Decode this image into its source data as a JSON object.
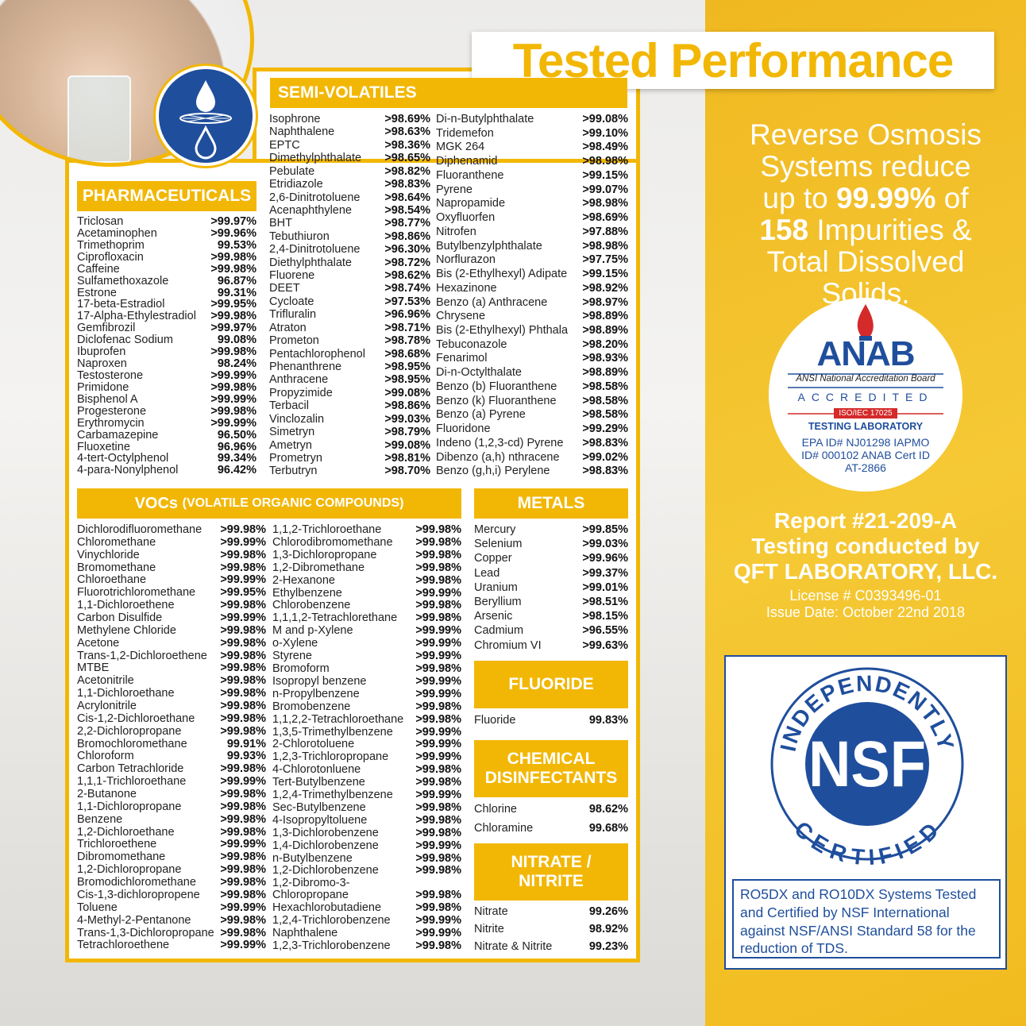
{
  "title": "Tested Performance",
  "colors": {
    "accent": "#f2b705",
    "blue": "#1f4e9c",
    "white": "#ffffff"
  },
  "icons": {
    "badge": "water-drop-filter-icon"
  },
  "pharmaceuticals": {
    "heading": "PHARMACEUTICALS",
    "items": [
      [
        "Triclosan",
        ">99.97%"
      ],
      [
        "Acetaminophen",
        ">99.96%"
      ],
      [
        "Trimethoprim",
        "99.53%"
      ],
      [
        "Ciprofloxacin",
        ">99.98%"
      ],
      [
        "Caffeine",
        ">99.98%"
      ],
      [
        "Sulfamethoxazole",
        "96.87%"
      ],
      [
        "Estrone",
        "99.31%"
      ],
      [
        "17-beta-Estradiol",
        ">99.95%"
      ],
      [
        "17-Alpha-Ethylestradiol",
        ">99.98%"
      ],
      [
        "Gemfibrozil",
        ">99.97%"
      ],
      [
        "Diclofenac Sodium",
        "99.08%"
      ],
      [
        "Ibuprofen",
        ">99.98%"
      ],
      [
        "Naproxen",
        "98.24%"
      ],
      [
        "Testosterone",
        ">99.99%"
      ],
      [
        "Primidone",
        ">99.98%"
      ],
      [
        "Bisphenol A",
        ">99.99%"
      ],
      [
        "Progesterone",
        ">99.98%"
      ],
      [
        "Erythromycin",
        ">99.99%"
      ],
      [
        "Carbamazepine",
        "96.50%"
      ],
      [
        "Fluoxetine",
        "96.96%"
      ],
      [
        "4-tert-Octylphenol",
        "99.34%"
      ],
      [
        "4-para-Nonylphenol",
        "96.42%"
      ]
    ]
  },
  "semi_volatiles": {
    "heading": "SEMI-VOLATILES",
    "col1": [
      [
        "Isophrone",
        ">98.69%"
      ],
      [
        "Naphthalene",
        ">98.63%"
      ],
      [
        "EPTC",
        ">98.36%"
      ],
      [
        "Dimethylphthalate",
        ">98.65%"
      ],
      [
        "Pebulate",
        ">98.82%"
      ],
      [
        "Etridiazole",
        ">98.83%"
      ],
      [
        "2,6-Dinitrotoluene",
        ">98.64%"
      ],
      [
        "Acenaphthylene",
        ">98.54%"
      ],
      [
        "BHT",
        ">98.77%"
      ],
      [
        "Tebuthiuron",
        ">98.86%"
      ],
      [
        "2,4-Dinitrotoluene",
        ">96.30%"
      ],
      [
        "Diethylphthalate",
        ">98.72%"
      ],
      [
        "Fluorene",
        ">98.62%"
      ],
      [
        "DEET",
        ">98.74%"
      ],
      [
        "Cycloate",
        ">97.53%"
      ],
      [
        "Trifluralin",
        ">96.96%"
      ],
      [
        "Atraton",
        ">98.71%"
      ],
      [
        "Prometon",
        ">98.78%"
      ],
      [
        "Pentachlorophenol",
        ">98.68%"
      ],
      [
        "Phenanthrene",
        ">98.95%"
      ],
      [
        "Anthracene",
        ">98.95%"
      ],
      [
        "Propyzimide",
        ">99.08%"
      ],
      [
        "Terbacil",
        ">98.86%"
      ],
      [
        "Vinclozalin",
        ">99.03%"
      ],
      [
        "Simetryn",
        ">98.79%"
      ],
      [
        "Ametryn",
        ">99.08%"
      ],
      [
        "Prometryn",
        ">98.81%"
      ],
      [
        "Terbutryn",
        ">98.70%"
      ]
    ],
    "col2": [
      [
        "Di-n-Butylphthalate",
        ">99.08%"
      ],
      [
        "Tridemefon",
        ">99.10%"
      ],
      [
        "MGK 264",
        ">98.49%"
      ],
      [
        "Diphenamid",
        ">98.98%"
      ],
      [
        "Fluoranthene",
        ">99.15%"
      ],
      [
        "Pyrene",
        ">99.07%"
      ],
      [
        "Napropamide",
        ">98.98%"
      ],
      [
        "Oxyfluorfen",
        ">98.69%"
      ],
      [
        "Nitrofen",
        ">97.88%"
      ],
      [
        "Butylbenzylphthalate",
        ">98.98%"
      ],
      [
        "Norflurazon",
        ">97.75%"
      ],
      [
        "Bis (2-Ethylhexyl) Adipate",
        ">99.15%"
      ],
      [
        "Hexazinone",
        ">98.92%"
      ],
      [
        "Benzo (a) Anthracene",
        ">98.97%"
      ],
      [
        "Chrysene",
        ">98.89%"
      ],
      [
        "Bis (2-Ethylhexyl) Phthala",
        ">98.89%"
      ],
      [
        "Tebuconazole",
        ">98.20%"
      ],
      [
        "Fenarimol",
        ">98.93%"
      ],
      [
        "Di-n-Octylthalate",
        ">98.89%"
      ],
      [
        "Benzo (b) Fluoranthene",
        ">98.58%"
      ],
      [
        "Benzo (k) Fluoranthene",
        ">98.58%"
      ],
      [
        "Benzo (a) Pyrene",
        ">98.58%"
      ],
      [
        "Fluoridone",
        ">99.29%"
      ],
      [
        "Indeno (1,2,3-cd) Pyrene",
        ">98.83%"
      ],
      [
        "Dibenzo (a,h) nthracene",
        ">99.02%"
      ],
      [
        "Benzo (g,h,i) Perylene",
        ">98.83%"
      ]
    ]
  },
  "vocs": {
    "heading": "VOCs",
    "heading_sub": "(VOLATILE ORGANIC COMPOUNDS)",
    "col1": [
      [
        "Dichlorodifluoromethane",
        ">99.98%"
      ],
      [
        "Chloromethane",
        ">99.99%"
      ],
      [
        "Vinychloride",
        ">99.98%"
      ],
      [
        "Bromomethane",
        ">99.98%"
      ],
      [
        "Chloroethane",
        ">99.99%"
      ],
      [
        "Fluorotrichloromethane",
        ">99.95%"
      ],
      [
        "1,1-Dichloroethene",
        ">99.98%"
      ],
      [
        "Carbon Disulfide",
        ">99.99%"
      ],
      [
        "Methylene Chloride",
        ">99.98%"
      ],
      [
        "Acetone",
        ">99.98%"
      ],
      [
        "Trans-1,2-Dichloroethene",
        ">99.98%"
      ],
      [
        "MTBE",
        ">99.98%"
      ],
      [
        "Acetonitrile",
        ">99.98%"
      ],
      [
        "1,1-Dichloroethane",
        ">99.98%"
      ],
      [
        "Acrylonitrile",
        ">99.98%"
      ],
      [
        "Cis-1,2-Dichloroethane",
        ">99.98%"
      ],
      [
        "2,2-Dichloropropane",
        ">99.98%"
      ],
      [
        "Bromochloromethane",
        "99.91%"
      ],
      [
        "Chloroform",
        "99.93%"
      ],
      [
        "Carbon Tetrachloride",
        ">99.98%"
      ],
      [
        "1,1,1-Trichloroethane",
        ">99.99%"
      ],
      [
        "2-Butanone",
        ">99.98%"
      ],
      [
        "1,1-Dichloropropane",
        ">99.98%"
      ],
      [
        "Benzene",
        ">99.98%"
      ],
      [
        "1,2-Dichloroethane",
        ">99.98%"
      ],
      [
        "Trichloroethene",
        ">99.99%"
      ],
      [
        "Dibromomethane",
        ">99.98%"
      ],
      [
        "1,2-Dichloropropane",
        ">99.98%"
      ],
      [
        "Bromodichloromethane",
        ">99.98%"
      ],
      [
        "Cis-1,3-dichloropropene",
        ">99.98%"
      ],
      [
        "Toluene",
        ">99.99%"
      ],
      [
        "4-Methyl-2-Pentanone",
        ">99.98%"
      ],
      [
        "Trans-1,3-Dichloropropane",
        ">99.98%"
      ],
      [
        "Tetrachloroethene",
        ">99.99%"
      ]
    ],
    "col2": [
      [
        "1,1,2-Trichloroethane",
        ">99.98%"
      ],
      [
        "Chlorodibromomethane",
        ">99.98%"
      ],
      [
        "1,3-Dichloropropane",
        ">99.98%"
      ],
      [
        "1,2-Dibromethane",
        ">99.98%"
      ],
      [
        "2-Hexanone",
        ">99.98%"
      ],
      [
        "Ethylbenzene",
        ">99.99%"
      ],
      [
        "Chlorobenzene",
        ">99.98%"
      ],
      [
        "1,1,1,2-Tetrachlorethane",
        ">99.98%"
      ],
      [
        "M and p-Xylene",
        ">99.99%"
      ],
      [
        "o-Xylene",
        ">99.99%"
      ],
      [
        "Styrene",
        ">99.99%"
      ],
      [
        "Bromoform",
        ">99.98%"
      ],
      [
        "Isopropyl benzene",
        ">99.99%"
      ],
      [
        "n-Propylbenzene",
        ">99.99%"
      ],
      [
        "Bromobenzene",
        ">99.98%"
      ],
      [
        "1,1,2,2-Tetrachloroethane",
        ">99.98%"
      ],
      [
        "1,3,5-Trimethylbenzene",
        ">99.99%"
      ],
      [
        "2-Chlorotoluene",
        ">99.99%"
      ],
      [
        "1,2,3-Trichloropropane",
        ">99.99%"
      ],
      [
        "4-Chlorotonluene",
        ">99.98%"
      ],
      [
        "Tert-Butylbenzene",
        ">99.98%"
      ],
      [
        "1,2,4-Trimethylbenzene",
        ">99.99%"
      ],
      [
        "Sec-Butylbenzene",
        ">99.98%"
      ],
      [
        "4-Isopropyltoluene",
        ">99.98%"
      ],
      [
        "1,3-Dichlorobenzene",
        ">99.98%"
      ],
      [
        "1,4-Dichlorobenzene",
        ">99.99%"
      ],
      [
        "n-Butylbenzene",
        ">99.98%"
      ],
      [
        "1,2-Dichlorobenzene",
        ">99.98%"
      ],
      [
        "1,2-Dibromo-3-\nChloropropane",
        ">99.98%"
      ],
      [
        "Hexachlorobutadiene",
        ">99.98%"
      ],
      [
        "1,2,4-Trichlorobenzene",
        ">99.99%"
      ],
      [
        "Naphthalene",
        ">99.99%"
      ],
      [
        "1,2,3-Trichlorobenzene",
        ">99.98%"
      ]
    ]
  },
  "metals": {
    "heading": "METALS",
    "items": [
      [
        "Mercury",
        ">99.85%"
      ],
      [
        "Selenium",
        ">99.03%"
      ],
      [
        "Copper",
        ">99.96%"
      ],
      [
        "Lead",
        ">99.37%"
      ],
      [
        "Uranium",
        ">99.01%"
      ],
      [
        "Beryllium",
        ">98.51%"
      ],
      [
        "Arsenic",
        ">98.15%"
      ],
      [
        "Cadmium",
        ">96.55%"
      ],
      [
        "Chromium VI",
        ">99.63%"
      ]
    ]
  },
  "fluoride": {
    "heading": "FLUORIDE",
    "items": [
      [
        "Fluoride",
        "99.83%"
      ]
    ]
  },
  "disinfectants": {
    "heading": "CHEMICAL DISINFECTANTS",
    "items": [
      [
        "Chlorine",
        "98.62%"
      ],
      [
        "Chloramine",
        "99.68%"
      ]
    ]
  },
  "nitrate": {
    "heading": "NITRATE / NITRITE",
    "items": [
      [
        "Nitrate",
        "99.26%"
      ],
      [
        "Nitrite",
        "98.92%"
      ],
      [
        "Nitrate & Nitrite",
        "99.23%"
      ]
    ]
  },
  "right": {
    "claim_pre": "Reverse Osmosis Systems reduce up to ",
    "claim_pct": "99.99%",
    "claim_mid": " of ",
    "claim_num": "158",
    "claim_post": " Impurities & Total Dissolved Solids.",
    "anab": {
      "logo": "ANAB",
      "board": "ANSI National Accreditation Board",
      "accredited": "ACCREDITED",
      "iso": "ISO/IEC 17025",
      "lab": "TESTING LABORATORY",
      "ids": "EPA ID# NJ01298 IAPMO ID# 000102 ANAB Cert ID AT-2866"
    },
    "report": "Report #21-209-A",
    "conducted": "Testing conducted by",
    "lab_name": "QFT LABORATORY, LLC.",
    "license": "License # C0393496-01",
    "issue": "Issue Date: October 22nd 2018",
    "nsf": {
      "top": "INDEPENDENTLY",
      "bottom": "CERTIFIED",
      "logo": "NSF",
      "note": "RO5DX and RO10DX Systems Tested and Certified by NSF International against NSF/ANSI Standard 58 for the reduction of TDS."
    }
  }
}
